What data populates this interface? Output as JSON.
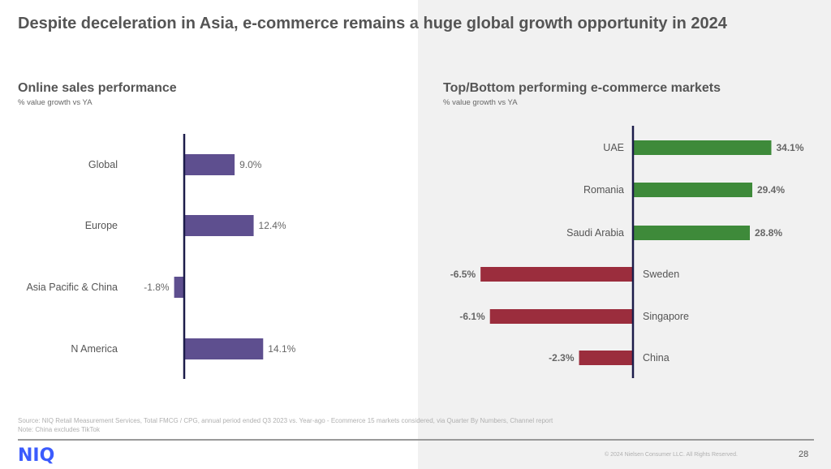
{
  "page": {
    "title": "Despite deceleration in Asia, e-commerce remains a huge global growth opportunity in 2024",
    "source_line": "Source: NIQ Retail Measurement Services, Total FMCG / CPG, annual period ended Q3 2023 vs. Year-ago  - Ecommerce 15 markets considered, via Quarter By Numbers, Channel report",
    "note_line": "Note: China excludes TikTok",
    "logo_text": "NIQ",
    "copyright": "© 2024 Nielsen Consumer LLC. All Rights Reserved.",
    "page_number": "28"
  },
  "colors": {
    "left_bar": "#5e4f8f",
    "positive_bar": "#3e8a3a",
    "negative_bar": "#9b2d3d",
    "axis": "#1c1c4a",
    "logo": "#3b5bfd",
    "right_panel_bg": "#f1f1f1"
  },
  "chart_data": [
    {
      "type": "bar",
      "orientation": "horizontal",
      "title": "Online sales performance",
      "subtitle": "% value growth vs YA",
      "xlabel": "",
      "ylabel": "",
      "categories": [
        "Global",
        "Europe",
        "Asia Pacific & China",
        "N America"
      ],
      "values": [
        9.0,
        12.4,
        -1.8,
        14.1
      ],
      "value_labels": [
        "9.0%",
        "12.4%",
        "-1.8%",
        "14.1%"
      ],
      "grid": false,
      "legend": "none"
    },
    {
      "type": "bar",
      "orientation": "horizontal",
      "title": "Top/Bottom performing e-commerce markets",
      "subtitle": "% value growth vs YA",
      "xlabel": "",
      "ylabel": "",
      "categories": [
        "UAE",
        "Romania",
        "Saudi Arabia",
        "Sweden",
        "Singapore",
        "China"
      ],
      "values": [
        34.1,
        29.4,
        28.8,
        -6.5,
        -6.1,
        -2.3
      ],
      "value_labels": [
        "34.1%",
        "29.4%",
        "28.8%",
        "-6.5%",
        "-6.1%",
        "-2.3%"
      ],
      "grid": false,
      "legend": "none"
    }
  ]
}
